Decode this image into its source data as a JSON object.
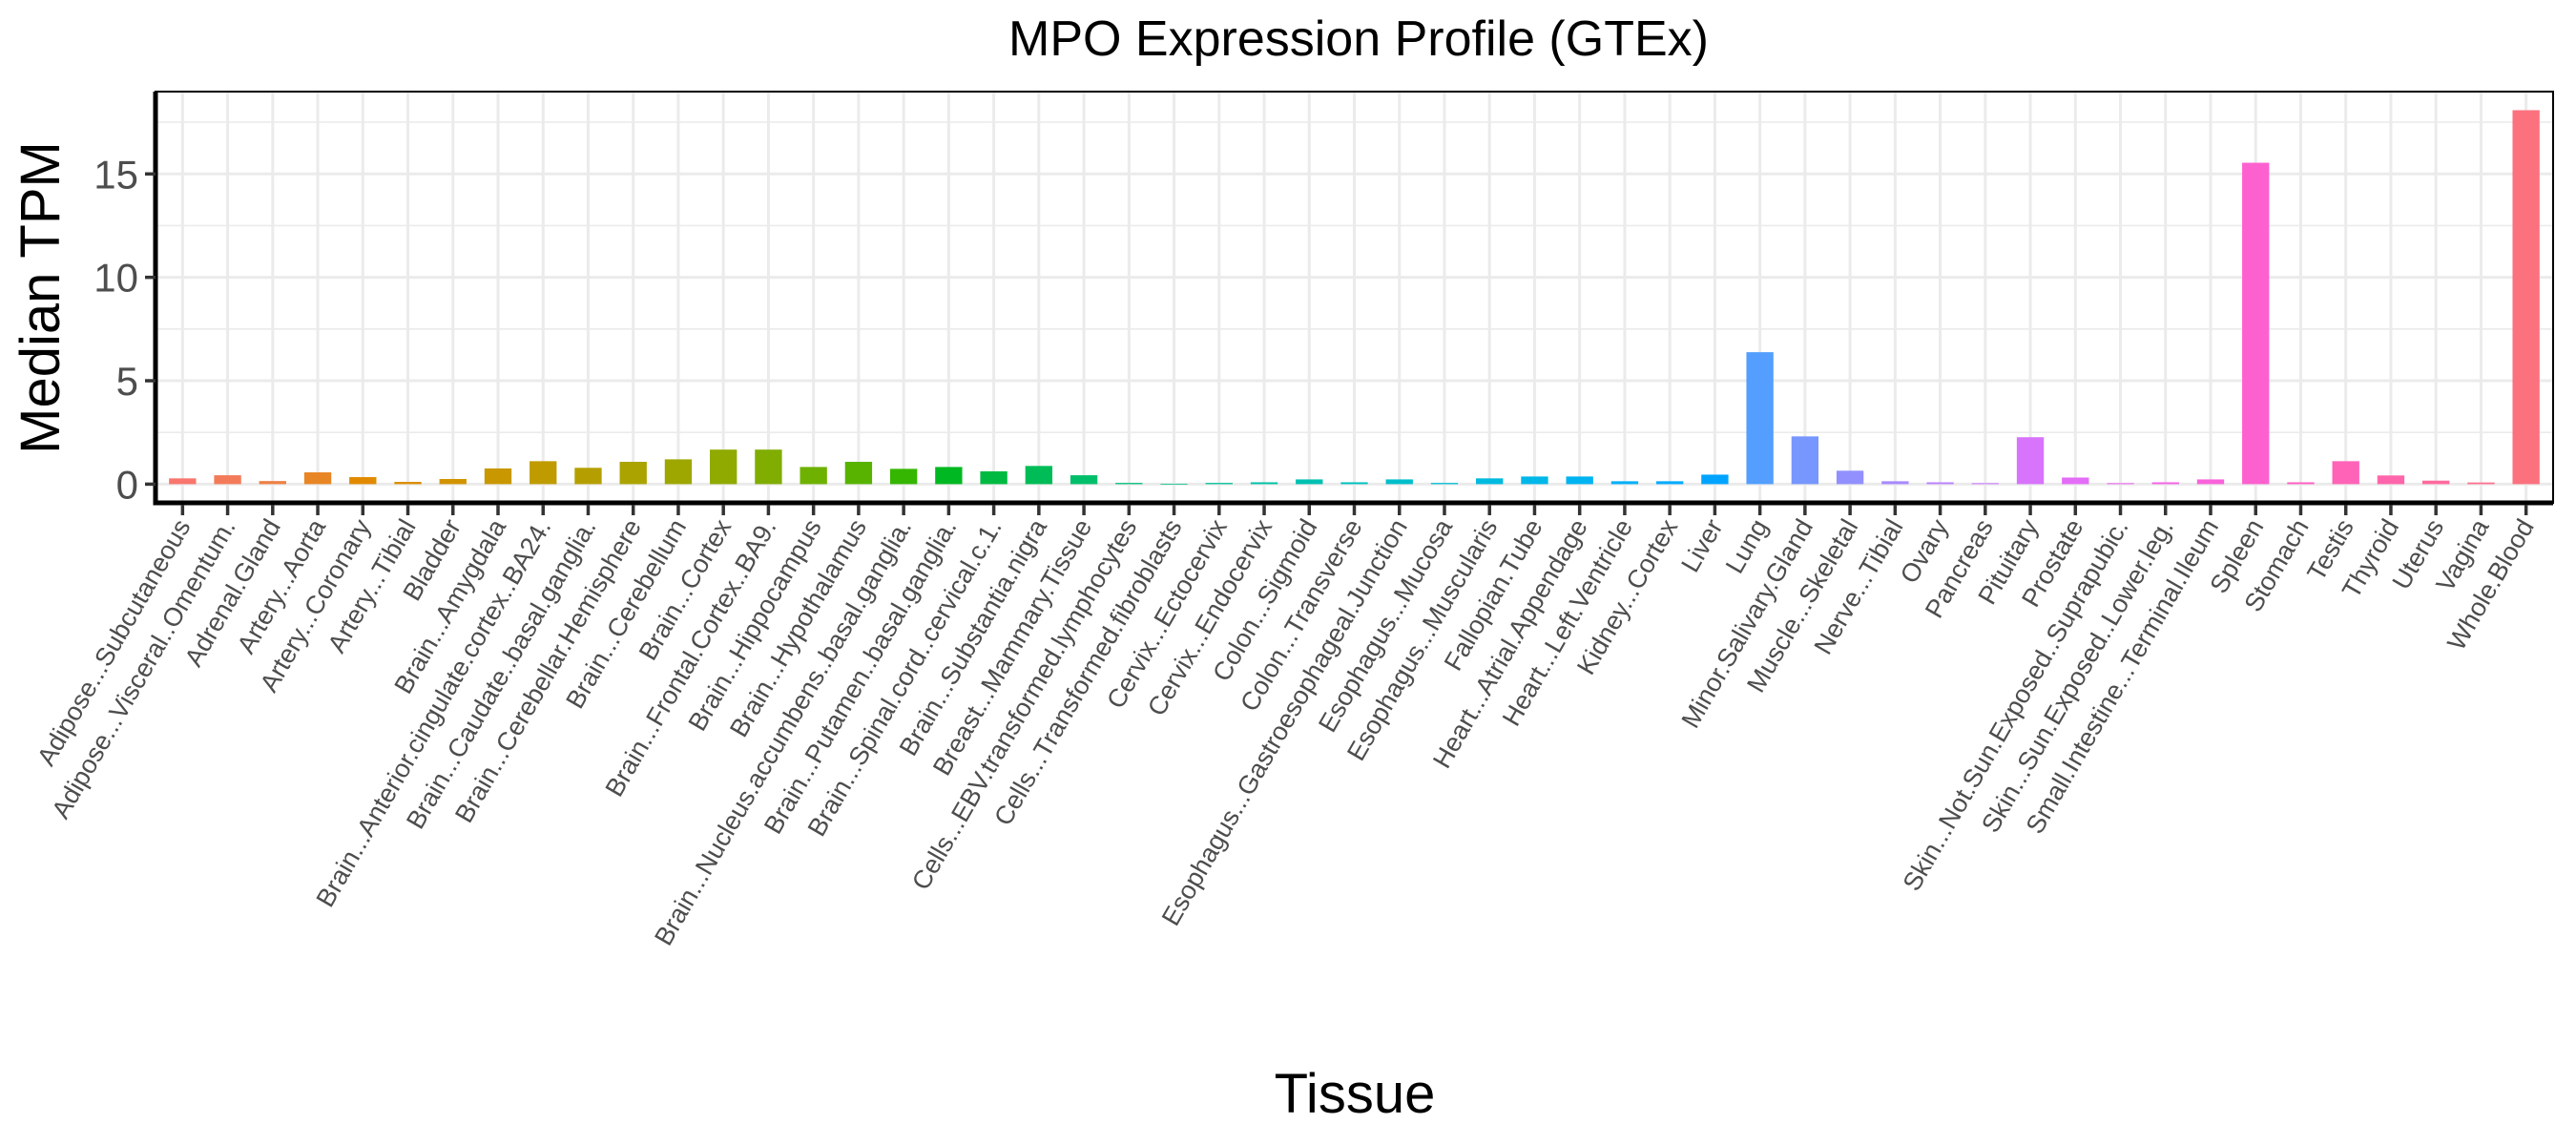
{
  "chart_data": {
    "type": "bar",
    "title": "MPO Expression Profile (GTEx)",
    "xlabel": "Tissue",
    "ylabel": "Median TPM",
    "ylim": [
      -0.904,
      18.98
    ],
    "yticks": [
      0,
      5,
      10,
      15
    ],
    "yminor": [
      2.5,
      7.5,
      12.5,
      17.5
    ],
    "grid": true,
    "legend": "none",
    "x_label_rotation_deg": 60,
    "palette": {
      "type": "hcl-hue",
      "hue_start": 15,
      "hue_end": 375,
      "chroma": 100,
      "luminance": 65
    },
    "categories": [
      "Adipose...Subcutaneous",
      "Adipose...Visceral..Omentum.",
      "Adrenal.Gland",
      "Artery...Aorta",
      "Artery...Coronary",
      "Artery...Tibial",
      "Bladder",
      "Brain...Amygdala",
      "Brain...Anterior.cingulate.cortex..BA24.",
      "Brain...Caudate..basal.ganglia.",
      "Brain...Cerebellar.Hemisphere",
      "Brain...Cerebellum",
      "Brain...Cortex",
      "Brain...Frontal.Cortex..BA9.",
      "Brain...Hippocampus",
      "Brain...Hypothalamus",
      "Brain...Nucleus.accumbens..basal.ganglia.",
      "Brain...Putamen..basal.ganglia.",
      "Brain...Spinal.cord..cervical.c.1.",
      "Brain...Substantia.nigra",
      "Breast...Mammary.Tissue",
      "Cells...EBV.transformed.lymphocytes",
      "Cells...Transformed.fibroblasts",
      "Cervix...Ectocervix",
      "Cervix...Endocervix",
      "Colon...Sigmoid",
      "Colon...Transverse",
      "Esophagus...Gastroesophageal.Junction",
      "Esophagus...Mucosa",
      "Esophagus...Muscularis",
      "Fallopian.Tube",
      "Heart...Atrial.Appendage",
      "Heart...Left.Ventricle",
      "Kidney...Cortex",
      "Liver",
      "Lung",
      "Minor.Salivary.Gland",
      "Muscle...Skeletal",
      "Nerve...Tibial",
      "Ovary",
      "Pancreas",
      "Pituitary",
      "Prostate",
      "Skin...Not.Sun.Exposed..Suprapubic.",
      "Skin...Sun.Exposed..Lower.leg.",
      "Small.Intestine...Terminal.Ileum",
      "Spleen",
      "Stomach",
      "Testis",
      "Thyroid",
      "Uterus",
      "Vagina",
      "Whole.Blood"
    ],
    "values": [
      0.28,
      0.43,
      0.15,
      0.57,
      0.34,
      0.11,
      0.25,
      0.76,
      1.11,
      0.79,
      1.08,
      1.2,
      1.67,
      1.67,
      0.83,
      1.08,
      0.74,
      0.83,
      0.62,
      0.88,
      0.43,
      0.06,
      0.02,
      0.06,
      0.09,
      0.23,
      0.09,
      0.23,
      0.06,
      0.28,
      0.37,
      0.37,
      0.14,
      0.14,
      0.46,
      6.38,
      2.31,
      0.65,
      0.14,
      0.09,
      0.05,
      2.27,
      0.32,
      0.05,
      0.09,
      0.23,
      15.54,
      0.09,
      1.11,
      0.42,
      0.17,
      0.08,
      18.08
    ]
  },
  "colors": {
    "background": "#ffffff",
    "panel_border": "#000000",
    "grid": "#ebebeb",
    "tick_text": "#4d4d4d",
    "first_bar": "#F8766D",
    "lung_bar": "#529EFF",
    "spleen_bar": "#FF61C9",
    "whole_blood_bar": "#FF6C91"
  }
}
